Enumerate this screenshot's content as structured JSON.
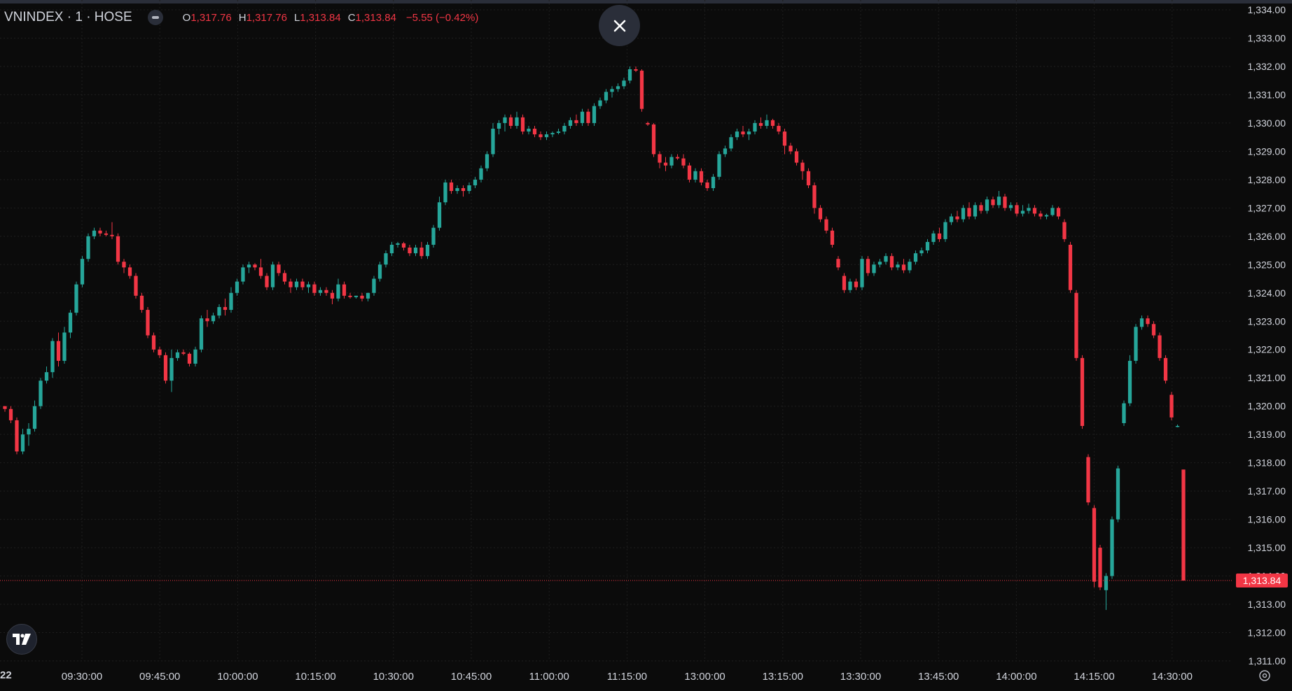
{
  "header": {
    "symbol": "VNINDEX · 1 · HOSE",
    "open_label": "O",
    "open": "1,317.76",
    "high_label": "H",
    "high": "1,317.76",
    "low_label": "L",
    "low": "1,313.84",
    "close_label": "C",
    "close": "1,313.84",
    "change": "−5.55 (−0.42%)"
  },
  "icons": {
    "close": "close-icon",
    "logo": "tradingview-logo-icon",
    "settings": "gear-icon",
    "visibility": "eye-toggle-icon"
  },
  "colors": {
    "up": "#26a69a",
    "down": "#f23645",
    "background": "#0b0b0b",
    "grid": "#1f1f1f",
    "text": "#d1d4dc"
  },
  "date_label": "22",
  "chart_data": {
    "type": "candlestick",
    "x_ticks": [
      "09:30:00",
      "09:45:00",
      "10:00:00",
      "10:15:00",
      "10:30:00",
      "10:45:00",
      "11:00:00",
      "11:15:00",
      "13:00:00",
      "13:15:00",
      "13:30:00",
      "13:45:00",
      "14:00:00",
      "14:15:00",
      "14:30:00"
    ],
    "y_ticks": [
      "1,334.00",
      "1,333.00",
      "1,332.00",
      "1,331.00",
      "1,330.00",
      "1,329.00",
      "1,328.00",
      "1,327.00",
      "1,326.00",
      "1,325.00",
      "1,324.00",
      "1,323.00",
      "1,322.00",
      "1,321.00",
      "1,320.00",
      "1,319.00",
      "1,318.00",
      "1,317.00",
      "1,316.00",
      "1,315.00",
      "1,314.00",
      "1,313.00",
      "1,312.00",
      "1,311.00"
    ],
    "ylim": [
      1311,
      1334
    ],
    "grid": true,
    "last_price_label": "1,313.84",
    "last_price": 1313.84,
    "candles": [
      [
        1320.0,
        1320.0,
        1319.8,
        1319.9
      ],
      [
        1319.9,
        1320.0,
        1319.4,
        1319.5
      ],
      [
        1319.5,
        1319.6,
        1318.3,
        1318.4
      ],
      [
        1318.4,
        1319.2,
        1318.3,
        1319.0
      ],
      [
        1319.0,
        1319.4,
        1318.6,
        1319.2
      ],
      [
        1319.2,
        1320.2,
        1319.1,
        1320.0
      ],
      [
        1320.0,
        1321.0,
        1319.9,
        1320.9
      ],
      [
        1320.9,
        1321.4,
        1320.8,
        1321.2
      ],
      [
        1321.2,
        1322.4,
        1321.0,
        1322.3
      ],
      [
        1322.3,
        1322.6,
        1321.4,
        1321.6
      ],
      [
        1321.6,
        1322.8,
        1321.5,
        1322.6
      ],
      [
        1322.6,
        1323.4,
        1322.4,
        1323.3
      ],
      [
        1323.3,
        1324.4,
        1323.2,
        1324.3
      ],
      [
        1324.3,
        1325.3,
        1324.2,
        1325.2
      ],
      [
        1325.2,
        1326.1,
        1325.1,
        1326.0
      ],
      [
        1326.0,
        1326.3,
        1325.9,
        1326.2
      ],
      [
        1326.2,
        1326.3,
        1326.0,
        1326.1
      ],
      [
        1326.1,
        1326.2,
        1326.0,
        1326.05
      ],
      [
        1326.05,
        1326.5,
        1325.9,
        1326.0
      ],
      [
        1326.0,
        1326.1,
        1325.0,
        1325.1
      ],
      [
        1325.1,
        1325.2,
        1324.7,
        1324.9
      ],
      [
        1324.9,
        1325.0,
        1324.5,
        1324.6
      ],
      [
        1324.6,
        1324.7,
        1323.8,
        1323.9
      ],
      [
        1323.9,
        1324.0,
        1323.3,
        1323.4
      ],
      [
        1323.4,
        1323.5,
        1322.4,
        1322.5
      ],
      [
        1322.5,
        1322.6,
        1321.9,
        1322.0
      ],
      [
        1322.0,
        1322.1,
        1321.7,
        1321.8
      ],
      [
        1321.8,
        1321.9,
        1320.8,
        1320.9
      ],
      [
        1320.9,
        1322.0,
        1320.5,
        1321.7
      ],
      [
        1321.7,
        1322.0,
        1321.6,
        1321.9
      ],
      [
        1321.9,
        1322.0,
        1321.8,
        1321.85
      ],
      [
        1321.85,
        1321.9,
        1321.4,
        1321.5
      ],
      [
        1321.5,
        1322.1,
        1321.4,
        1322.0
      ],
      [
        1322.0,
        1323.2,
        1321.9,
        1323.1
      ],
      [
        1323.1,
        1323.4,
        1322.8,
        1323.0
      ],
      [
        1323.0,
        1323.3,
        1322.9,
        1323.2
      ],
      [
        1323.2,
        1323.6,
        1323.1,
        1323.5
      ],
      [
        1323.5,
        1323.8,
        1323.2,
        1323.4
      ],
      [
        1323.4,
        1324.2,
        1323.3,
        1324.0
      ],
      [
        1324.0,
        1324.5,
        1323.9,
        1324.4
      ],
      [
        1324.4,
        1325.0,
        1324.3,
        1324.9
      ],
      [
        1324.9,
        1325.1,
        1324.7,
        1325.0
      ],
      [
        1325.0,
        1325.05,
        1324.8,
        1324.9
      ],
      [
        1324.9,
        1325.2,
        1324.5,
        1324.6
      ],
      [
        1324.6,
        1324.7,
        1324.1,
        1324.2
      ],
      [
        1324.2,
        1325.1,
        1324.1,
        1325.0
      ],
      [
        1325.0,
        1325.1,
        1324.6,
        1324.7
      ],
      [
        1324.7,
        1324.8,
        1324.3,
        1324.4
      ],
      [
        1324.4,
        1324.5,
        1324.0,
        1324.2
      ],
      [
        1324.2,
        1324.5,
        1324.1,
        1324.4
      ],
      [
        1324.4,
        1324.5,
        1324.1,
        1324.2
      ],
      [
        1324.2,
        1324.4,
        1324.0,
        1324.3
      ],
      [
        1324.3,
        1324.4,
        1323.9,
        1324.0
      ],
      [
        1324.0,
        1324.2,
        1323.9,
        1324.1
      ],
      [
        1324.1,
        1324.2,
        1323.9,
        1324.0
      ],
      [
        1324.0,
        1324.1,
        1323.6,
        1323.8
      ],
      [
        1323.8,
        1324.5,
        1323.7,
        1324.3
      ],
      [
        1324.3,
        1324.4,
        1323.8,
        1323.9
      ],
      [
        1323.9,
        1324.0,
        1323.8,
        1323.85
      ],
      [
        1323.85,
        1323.9,
        1323.8,
        1323.9
      ],
      [
        1323.9,
        1324.0,
        1323.7,
        1323.8
      ],
      [
        1323.8,
        1324.0,
        1323.7,
        1324.0
      ],
      [
        1324.0,
        1324.6,
        1323.9,
        1324.5
      ],
      [
        1324.5,
        1325.1,
        1324.4,
        1325.0
      ],
      [
        1325.0,
        1325.5,
        1324.9,
        1325.4
      ],
      [
        1325.4,
        1325.8,
        1325.3,
        1325.7
      ],
      [
        1325.7,
        1325.8,
        1325.6,
        1325.75
      ],
      [
        1325.75,
        1325.8,
        1325.5,
        1325.6
      ],
      [
        1325.6,
        1325.7,
        1325.3,
        1325.4
      ],
      [
        1325.4,
        1325.7,
        1325.3,
        1325.6
      ],
      [
        1325.6,
        1325.8,
        1325.2,
        1325.3
      ],
      [
        1325.3,
        1325.8,
        1325.2,
        1325.7
      ],
      [
        1325.7,
        1326.4,
        1325.6,
        1326.3
      ],
      [
        1326.3,
        1327.4,
        1326.2,
        1327.2
      ],
      [
        1327.2,
        1328.0,
        1327.1,
        1327.9
      ],
      [
        1327.9,
        1328.0,
        1327.5,
        1327.6
      ],
      [
        1327.6,
        1327.8,
        1327.5,
        1327.7
      ],
      [
        1327.7,
        1327.8,
        1327.4,
        1327.6
      ],
      [
        1327.6,
        1327.9,
        1327.5,
        1327.8
      ],
      [
        1327.8,
        1328.1,
        1327.7,
        1328.0
      ],
      [
        1328.0,
        1328.5,
        1327.9,
        1328.4
      ],
      [
        1328.4,
        1329.0,
        1328.3,
        1328.9
      ],
      [
        1328.9,
        1330.0,
        1328.8,
        1329.8
      ],
      [
        1329.8,
        1330.1,
        1329.6,
        1330.0
      ],
      [
        1330.0,
        1330.3,
        1329.7,
        1330.2
      ],
      [
        1330.2,
        1330.3,
        1329.8,
        1329.9
      ],
      [
        1329.9,
        1330.4,
        1329.8,
        1330.2
      ],
      [
        1330.2,
        1330.3,
        1329.6,
        1329.7
      ],
      [
        1329.7,
        1329.9,
        1329.6,
        1329.8
      ],
      [
        1329.8,
        1329.9,
        1329.5,
        1329.6
      ],
      [
        1329.6,
        1329.7,
        1329.4,
        1329.5
      ],
      [
        1329.5,
        1329.7,
        1329.4,
        1329.6
      ],
      [
        1329.6,
        1329.7,
        1329.5,
        1329.65
      ],
      [
        1329.65,
        1329.8,
        1329.6,
        1329.7
      ],
      [
        1329.7,
        1330.0,
        1329.6,
        1329.9
      ],
      [
        1329.9,
        1330.2,
        1329.8,
        1330.1
      ],
      [
        1330.1,
        1330.3,
        1329.9,
        1330.0
      ],
      [
        1330.0,
        1330.5,
        1329.9,
        1330.4
      ],
      [
        1330.4,
        1330.5,
        1329.9,
        1330.0
      ],
      [
        1330.0,
        1330.7,
        1329.9,
        1330.6
      ],
      [
        1330.6,
        1330.9,
        1330.5,
        1330.8
      ],
      [
        1330.8,
        1331.2,
        1330.7,
        1331.1
      ],
      [
        1331.1,
        1331.3,
        1330.9,
        1331.2
      ],
      [
        1331.2,
        1331.4,
        1331.1,
        1331.3
      ],
      [
        1331.3,
        1331.6,
        1331.2,
        1331.5
      ],
      [
        1331.5,
        1332.0,
        1331.4,
        1331.9
      ],
      [
        1331.9,
        1332.0,
        1331.8,
        1331.85
      ],
      [
        1331.85,
        1331.9,
        1330.4,
        1330.5
      ],
      [
        1330.0,
        1330.05,
        1329.9,
        1329.95
      ],
      [
        1329.95,
        1330.0,
        1328.8,
        1328.9
      ],
      [
        1328.9,
        1329.0,
        1328.4,
        1328.6
      ],
      [
        1328.6,
        1328.8,
        1328.3,
        1328.5
      ],
      [
        1328.5,
        1328.9,
        1328.4,
        1328.8
      ],
      [
        1328.8,
        1328.9,
        1328.7,
        1328.75
      ],
      [
        1328.75,
        1328.9,
        1328.4,
        1328.5
      ],
      [
        1328.5,
        1328.6,
        1327.9,
        1328.0
      ],
      [
        1328.0,
        1328.4,
        1327.9,
        1328.3
      ],
      [
        1328.3,
        1328.4,
        1327.8,
        1327.9
      ],
      [
        1327.9,
        1328.0,
        1327.6,
        1327.7
      ],
      [
        1327.7,
        1328.2,
        1327.6,
        1328.1
      ],
      [
        1328.1,
        1329.0,
        1328.0,
        1328.9
      ],
      [
        1328.9,
        1329.2,
        1328.8,
        1329.1
      ],
      [
        1329.1,
        1329.6,
        1329.0,
        1329.5
      ],
      [
        1329.5,
        1329.8,
        1329.4,
        1329.7
      ],
      [
        1329.7,
        1329.9,
        1329.5,
        1329.6
      ],
      [
        1329.6,
        1329.8,
        1329.4,
        1329.7
      ],
      [
        1329.7,
        1330.1,
        1329.6,
        1330.0
      ],
      [
        1330.0,
        1330.2,
        1329.8,
        1329.9
      ],
      [
        1329.9,
        1330.3,
        1329.8,
        1330.1
      ],
      [
        1330.1,
        1330.15,
        1329.8,
        1329.9
      ],
      [
        1329.9,
        1330.0,
        1329.6,
        1329.7
      ],
      [
        1329.7,
        1329.8,
        1328.9,
        1329.2
      ],
      [
        1329.2,
        1329.3,
        1328.9,
        1329.0
      ],
      [
        1329.0,
        1329.1,
        1328.5,
        1328.6
      ],
      [
        1328.6,
        1328.7,
        1328.0,
        1328.3
      ],
      [
        1328.3,
        1328.4,
        1327.7,
        1327.8
      ],
      [
        1327.8,
        1327.9,
        1326.8,
        1327.0
      ],
      [
        1327.0,
        1327.1,
        1326.5,
        1326.6
      ],
      [
        1326.6,
        1326.7,
        1326.1,
        1326.2
      ],
      [
        1326.2,
        1326.3,
        1325.6,
        1325.7
      ],
      [
        1325.2,
        1325.3,
        1324.8,
        1324.9
      ],
      [
        1324.6,
        1324.7,
        1324.0,
        1324.1
      ],
      [
        1324.1,
        1324.5,
        1324.0,
        1324.4
      ],
      [
        1324.4,
        1324.5,
        1324.1,
        1324.2
      ],
      [
        1324.2,
        1325.3,
        1324.1,
        1325.2
      ],
      [
        1325.2,
        1325.3,
        1324.6,
        1324.7
      ],
      [
        1324.7,
        1325.1,
        1324.6,
        1325.0
      ],
      [
        1325.0,
        1325.2,
        1324.9,
        1325.1
      ],
      [
        1325.1,
        1325.4,
        1325.0,
        1325.3
      ],
      [
        1325.3,
        1325.4,
        1324.8,
        1324.9
      ],
      [
        1324.9,
        1325.1,
        1324.8,
        1325.0
      ],
      [
        1325.0,
        1325.2,
        1324.7,
        1324.8
      ],
      [
        1324.8,
        1325.2,
        1324.7,
        1325.1
      ],
      [
        1325.1,
        1325.5,
        1325.0,
        1325.4
      ],
      [
        1325.4,
        1325.6,
        1325.3,
        1325.5
      ],
      [
        1325.5,
        1325.9,
        1325.4,
        1325.8
      ],
      [
        1325.8,
        1326.2,
        1325.7,
        1326.1
      ],
      [
        1326.1,
        1326.3,
        1325.8,
        1325.9
      ],
      [
        1325.9,
        1326.6,
        1325.8,
        1326.5
      ],
      [
        1326.5,
        1326.8,
        1326.4,
        1326.7
      ],
      [
        1326.7,
        1326.9,
        1326.5,
        1326.6
      ],
      [
        1326.6,
        1327.1,
        1326.5,
        1327.0
      ],
      [
        1327.0,
        1327.2,
        1326.6,
        1326.7
      ],
      [
        1326.7,
        1327.2,
        1326.6,
        1327.1
      ],
      [
        1327.1,
        1327.2,
        1326.8,
        1326.9
      ],
      [
        1326.9,
        1327.4,
        1326.8,
        1327.3
      ],
      [
        1327.3,
        1327.4,
        1327.0,
        1327.1
      ],
      [
        1327.1,
        1327.6,
        1327.0,
        1327.4
      ],
      [
        1327.4,
        1327.5,
        1326.9,
        1327.0
      ],
      [
        1327.0,
        1327.2,
        1326.9,
        1327.1
      ],
      [
        1327.1,
        1327.2,
        1326.7,
        1326.8
      ],
      [
        1326.8,
        1327.1,
        1326.7,
        1326.9
      ],
      [
        1326.9,
        1327.15,
        1326.8,
        1327.0
      ],
      [
        1327.0,
        1327.1,
        1326.7,
        1326.8
      ],
      [
        1326.8,
        1326.9,
        1326.6,
        1326.7
      ],
      [
        1326.7,
        1326.8,
        1326.6,
        1326.75
      ],
      [
        1326.75,
        1327.1,
        1326.7,
        1327.0
      ],
      [
        1327.0,
        1327.05,
        1326.6,
        1326.7
      ],
      [
        1326.5,
        1326.6,
        1325.8,
        1325.9
      ],
      [
        1325.7,
        1325.8,
        1324.0,
        1324.1
      ],
      [
        1324.0,
        1324.1,
        1321.6,
        1321.7
      ],
      [
        1321.7,
        1321.8,
        1319.2,
        1319.3
      ],
      [
        1318.2,
        1318.3,
        1316.5,
        1316.6
      ],
      [
        1316.4,
        1316.5,
        1313.6,
        1313.8
      ],
      [
        1315.0,
        1315.1,
        1313.5,
        1313.6
      ],
      [
        1313.5,
        1314.1,
        1312.8,
        1314.0
      ],
      [
        1314.0,
        1316.1,
        1313.9,
        1316.0
      ],
      [
        1316.0,
        1317.9,
        1315.9,
        1317.8
      ],
      [
        1319.4,
        1320.2,
        1319.3,
        1320.1
      ],
      [
        1320.1,
        1321.8,
        1320.0,
        1321.6
      ],
      [
        1321.6,
        1322.9,
        1321.5,
        1322.8
      ],
      [
        1322.8,
        1323.2,
        1322.7,
        1323.1
      ],
      [
        1323.1,
        1323.2,
        1322.8,
        1322.9
      ],
      [
        1322.9,
        1323.0,
        1322.4,
        1322.5
      ],
      [
        1322.5,
        1322.6,
        1321.6,
        1321.7
      ],
      [
        1321.7,
        1321.8,
        1320.8,
        1320.9
      ],
      [
        1320.4,
        1320.5,
        1319.5,
        1319.6
      ],
      [
        1319.3,
        1319.35,
        1319.25,
        1319.3
      ],
      [
        1317.76,
        1317.76,
        1313.84,
        1313.84
      ]
    ]
  }
}
